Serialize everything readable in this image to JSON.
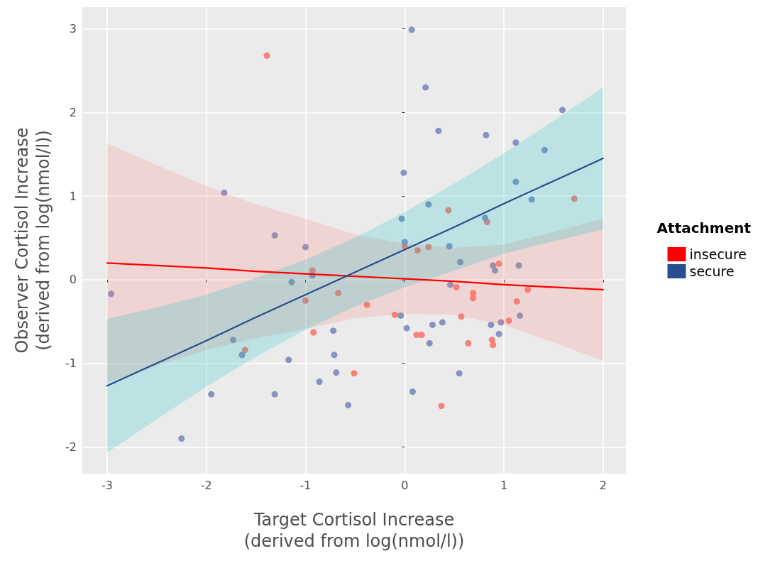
{
  "chart_data": {
    "type": "scatter",
    "xlabel": "Target Cortisol Increase\n(derived from log(nmol/l))",
    "ylabel": "Observer Cortisol Increase\n(derived from log(nmol/l))",
    "legend_title": "Attachment",
    "legend": "right",
    "grid": true,
    "marker": "circle",
    "line_style": "solid",
    "xlim": [
      -3.25,
      2.23
    ],
    "ylim": [
      -2.32,
      3.26
    ],
    "xticks": [
      -3,
      -2,
      -1,
      0,
      1,
      2
    ],
    "yticks": [
      -2,
      -1,
      0,
      1,
      2,
      3
    ],
    "series": [
      {
        "color": "#f8766d",
        "x": [
          -1.39,
          -0.93,
          -1.0,
          -0.92,
          -1.61,
          -0.67,
          -0.38,
          -0.51,
          -0.1,
          0.0,
          0.13,
          0.24,
          0.44,
          0.83,
          1.71,
          0.95,
          0.52,
          0.69,
          0.69,
          0.57,
          1.24,
          1.13,
          1.05,
          0.12,
          0.17,
          0.64,
          0.88,
          0.89,
          0.37
        ],
        "values": [
          2.68,
          0.11,
          -0.25,
          -0.63,
          -0.84,
          -0.16,
          -0.3,
          -1.12,
          -0.42,
          0.4,
          0.35,
          0.39,
          0.83,
          0.69,
          0.97,
          0.19,
          -0.09,
          -0.16,
          -0.22,
          -0.44,
          -0.12,
          -0.26,
          -0.49,
          -0.66,
          -0.66,
          -0.76,
          -0.72,
          -0.78,
          -1.51
        ]
      },
      {
        "color": "#7b8abc",
        "x": [
          -2.96,
          -1.82,
          -1.31,
          -1.0,
          -1.14,
          -0.93,
          -1.73,
          -1.64,
          -1.17,
          -0.86,
          -1.31,
          -1.95,
          -2.25,
          -0.72,
          -0.71,
          -0.69,
          -0.57,
          0.07,
          0.21,
          0.34,
          -0.01,
          0.24,
          -0.03,
          0.0,
          0.82,
          1.12,
          1.41,
          1.59,
          1.12,
          1.28,
          0.81,
          0.45,
          0.56,
          0.46,
          0.89,
          0.91,
          1.15,
          -0.04,
          0.02,
          0.28,
          0.38,
          0.25,
          0.87,
          0.97,
          1.16,
          0.95,
          0.55,
          0.08
        ],
        "values": [
          -0.17,
          1.04,
          0.53,
          0.39,
          -0.03,
          0.05,
          -0.72,
          -0.9,
          -0.96,
          -1.22,
          -1.37,
          -1.37,
          -1.9,
          -0.61,
          -0.9,
          -1.11,
          -1.5,
          2.99,
          2.3,
          1.78,
          1.28,
          0.9,
          0.73,
          0.45,
          1.73,
          1.64,
          1.55,
          2.03,
          1.17,
          0.96,
          0.74,
          0.4,
          0.21,
          -0.06,
          0.17,
          0.11,
          0.17,
          -0.43,
          -0.58,
          -0.54,
          -0.51,
          -0.76,
          -0.54,
          -0.51,
          -0.43,
          -0.65,
          -1.12,
          -1.34
        ]
      },
      {
        "type": "line",
        "marker": "none",
        "name": "insecure",
        "color": "#ff0000",
        "x": [
          -3,
          -2.5,
          -2,
          -1.5,
          -1,
          -0.5,
          0,
          0.5,
          1,
          1.5,
          2
        ],
        "values": [
          0.2,
          0.17,
          0.14,
          0.1,
          0.07,
          0.04,
          0.01,
          -0.02,
          -0.06,
          -0.09,
          -0.12
        ],
        "lower": [
          -1.23,
          -1.03,
          -0.84,
          -0.7,
          -0.59,
          -0.46,
          -0.41,
          -0.42,
          -0.54,
          -0.75,
          -0.97
        ],
        "upper": [
          1.63,
          1.37,
          1.12,
          0.9,
          0.73,
          0.54,
          0.43,
          0.38,
          0.42,
          0.57,
          0.73
        ]
      },
      {
        "type": "line",
        "marker": "none",
        "name": "secure",
        "color": "#2a4d8f",
        "x": [
          -3,
          -2.5,
          -2,
          -1.5,
          -1,
          -0.5,
          0,
          0.5,
          1,
          1.5,
          2
        ],
        "values": [
          -1.27,
          -1.0,
          -0.73,
          -0.45,
          -0.18,
          0.09,
          0.36,
          0.63,
          0.91,
          1.18,
          1.45
        ],
        "lower": [
          -2.07,
          -1.67,
          -1.28,
          -0.92,
          -0.6,
          -0.32,
          -0.09,
          0.11,
          0.31,
          0.46,
          0.6
        ],
        "upper": [
          -0.47,
          -0.33,
          -0.18,
          0.02,
          0.24,
          0.5,
          0.81,
          1.15,
          1.51,
          1.9,
          2.3
        ]
      }
    ]
  }
}
